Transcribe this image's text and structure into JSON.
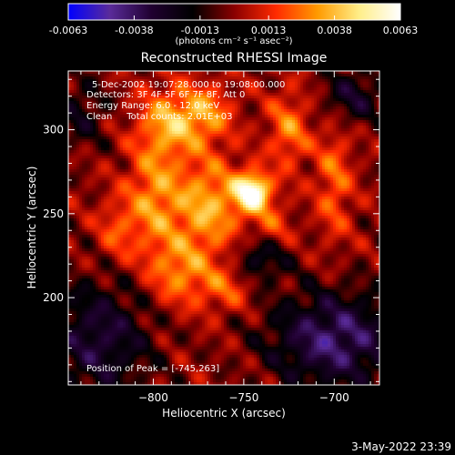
{
  "chart_data": {
    "type": "heatmap",
    "title": "Reconstructed RHESSI Image",
    "xlabel": "Heliocentric X (arcsec)",
    "ylabel": "Heliocentric Y (arcsec)",
    "xlim": [
      -847,
      -675
    ],
    "ylim": [
      148,
      335
    ],
    "x_ticks": [
      -800,
      -750,
      -700
    ],
    "y_ticks": [
      200,
      250,
      300
    ],
    "colorbar": {
      "ticks": [
        -0.0063,
        -0.0038,
        -0.0013,
        0.0013,
        0.0038,
        0.0063
      ],
      "range": [
        -0.0063,
        0.0063
      ],
      "units_line": "(photons cm⁻² s⁻¹ asec⁻²)",
      "colors": [
        "#0000ff",
        "#5a2b9a",
        "#200030",
        "#000000",
        "#8a0000",
        "#ff2a00",
        "#ff9a00",
        "#ffee88",
        "#ffffff"
      ]
    },
    "annotations": [
      "5-Dec-2002 19:07:28.000 to 19:08:00.000",
      "Detectors: 3F 4F 5F 6F 7F 8F, Att 0",
      "Energy Range: 6.0 - 12.0 keV",
      "Clean     Total counts: 2.01E+03"
    ],
    "peak_label": "Position of Peak = [-745,263]",
    "peak": [
      -745,
      263
    ],
    "sources": [
      {
        "x": -745,
        "y": 263,
        "amp": 0.0063,
        "sx": 7,
        "sy": 8
      },
      {
        "x": -770,
        "y": 255,
        "amp": 0.0035,
        "sx": 14,
        "sy": 20
      },
      {
        "x": -800,
        "y": 260,
        "amp": 0.0028,
        "sx": 10,
        "sy": 25
      },
      {
        "x": -790,
        "y": 305,
        "amp": 0.0032,
        "sx": 12,
        "sy": 14
      },
      {
        "x": -770,
        "y": 310,
        "amp": 0.0025,
        "sx": 10,
        "sy": 12
      },
      {
        "x": -725,
        "y": 300,
        "amp": 0.0026,
        "sx": 8,
        "sy": 16
      },
      {
        "x": -700,
        "y": 270,
        "amp": 0.0022,
        "sx": 7,
        "sy": 25
      },
      {
        "x": -785,
        "y": 215,
        "amp": 0.0026,
        "sx": 12,
        "sy": 14
      },
      {
        "x": -760,
        "y": 205,
        "amp": 0.0018,
        "sx": 10,
        "sy": 10
      },
      {
        "x": -820,
        "y": 240,
        "amp": 0.0018,
        "sx": 8,
        "sy": 14
      },
      {
        "x": -735,
        "y": 240,
        "amp": 0.002,
        "sx": 8,
        "sy": 10
      },
      {
        "x": -700,
        "y": 175,
        "amp": -0.004,
        "sx": 25,
        "sy": 20
      },
      {
        "x": -740,
        "y": 225,
        "amp": -0.0028,
        "sx": 10,
        "sy": 10
      },
      {
        "x": -830,
        "y": 175,
        "amp": -0.003,
        "sx": 20,
        "sy": 25
      },
      {
        "x": -690,
        "y": 320,
        "amp": -0.0025,
        "sx": 12,
        "sy": 12
      },
      {
        "x": -840,
        "y": 310,
        "amp": -0.0018,
        "sx": 10,
        "sy": 15
      }
    ]
  },
  "footer": {
    "date": "3-May-2022 23:39"
  }
}
